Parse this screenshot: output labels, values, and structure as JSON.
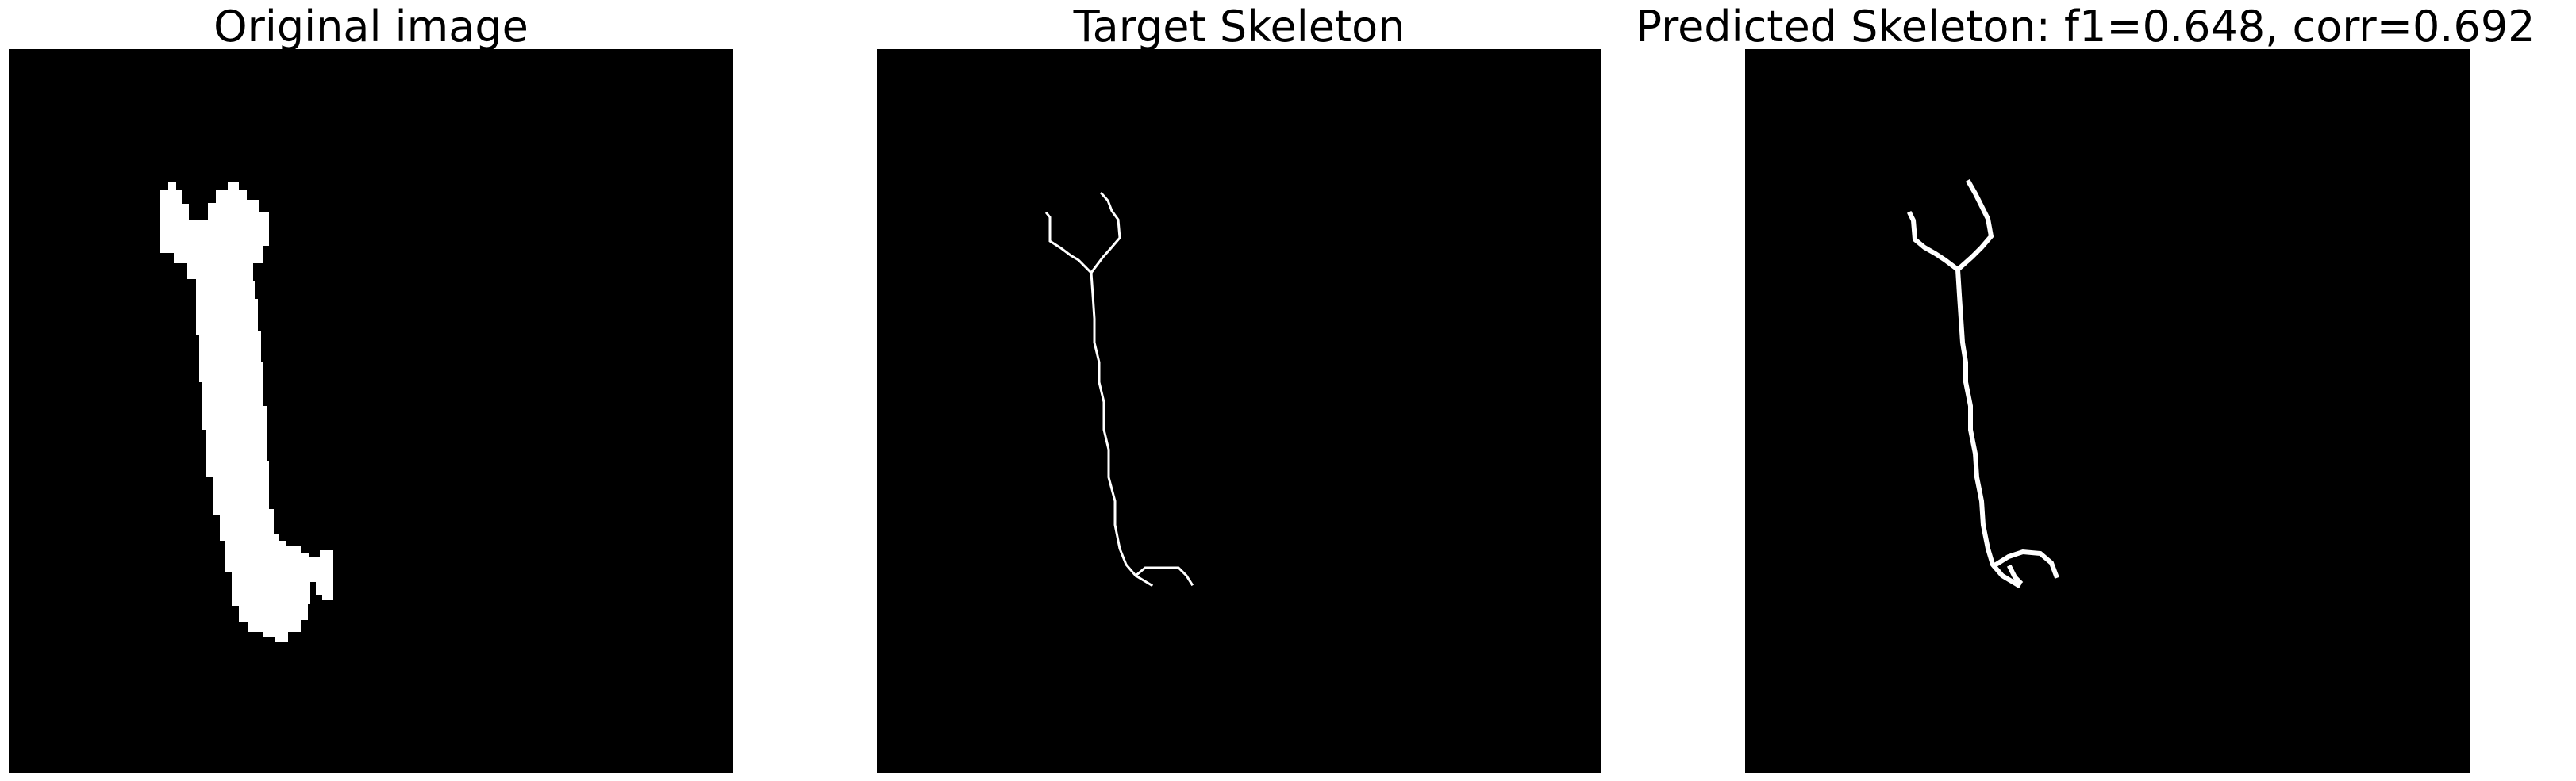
{
  "figure": {
    "panels": [
      {
        "title": "Original image",
        "content": "binary-mask-wrench"
      },
      {
        "title": "Target Skeleton",
        "content": "skeleton-thin"
      },
      {
        "title": "Predicted Skeleton: f1=0.648, corr=0.692",
        "content": "skeleton-thick"
      }
    ],
    "metrics": {
      "f1": 0.648,
      "corr": 0.692
    },
    "colors": {
      "background": "#000000",
      "foreground": "#ffffff",
      "page": "#ffffff"
    }
  }
}
